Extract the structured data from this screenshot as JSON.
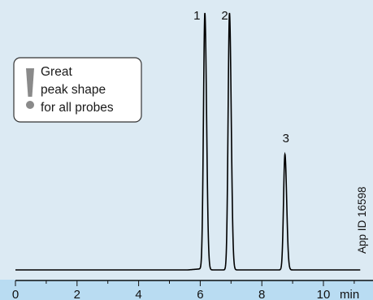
{
  "chart_data": {
    "type": "line",
    "xlabel": "min",
    "ylabel": "",
    "xlim": [
      0,
      11.2
    ],
    "ylim": [
      0,
      1.0
    ],
    "x_ticks": [
      0,
      2,
      4,
      6,
      8,
      10
    ],
    "x_tick_labels": [
      "0",
      "2",
      "4",
      "6",
      "8",
      "10"
    ],
    "grid": false,
    "peaks": [
      {
        "label": "1",
        "x": 6.15,
        "height": 1.0
      },
      {
        "label": "2",
        "x": 6.95,
        "height": 1.0
      },
      {
        "label": "3",
        "x": 8.75,
        "height": 0.45
      }
    ]
  },
  "callout": {
    "icon": "exclamation-icon",
    "lines": [
      "Great",
      "peak shape",
      "for all probes"
    ]
  },
  "watermark": "App ID 16598",
  "colors": {
    "background": "#dceaf3",
    "axis_band": "#b9dcf2",
    "trace": "#000000",
    "callout_fill": "#ffffff",
    "icon": "#8a8a8a"
  }
}
